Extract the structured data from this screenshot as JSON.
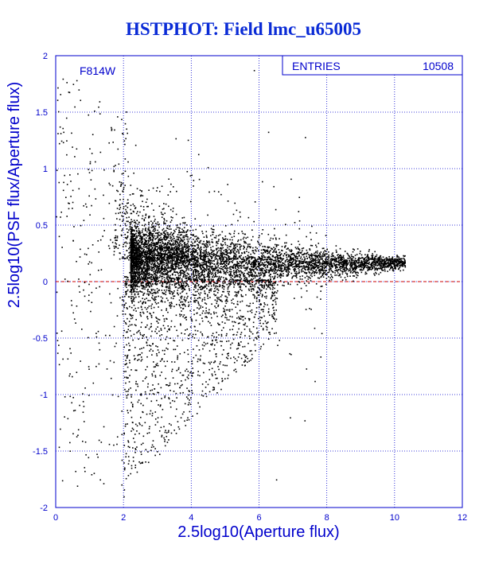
{
  "chart_data": {
    "type": "scatter",
    "title": "HSTPHOT: Field lmc_u65005",
    "xlabel": "2.5log10(Aperture flux)",
    "ylabel": "2.5log10(PSF flux/Aperture flux)",
    "xlim": [
      0,
      12
    ],
    "ylim": [
      -2,
      2
    ],
    "x_ticks": [
      "0",
      "2",
      "4",
      "6",
      "8",
      "10",
      "12"
    ],
    "y_ticks": [
      "-2",
      "-1.5",
      "-1",
      "-0.5",
      "0",
      "0.5",
      "1",
      "1.5",
      "2"
    ],
    "grid": true,
    "reference_line": {
      "y": 0,
      "color": "#cc0000",
      "style": "dashed"
    },
    "filter_label": "F814W",
    "stats_box": {
      "label": "ENTRIES",
      "value": "10508"
    },
    "entries": 10508,
    "series": [
      {
        "marker_color": "#000000",
        "points_sample": [
          [
            0.05,
            1.72
          ],
          [
            0.45,
            1.32
          ],
          [
            0.6,
            1.18
          ],
          [
            0.95,
            1.48
          ],
          [
            1.25,
            1.55
          ],
          [
            1.0,
            1.05
          ],
          [
            1.7,
            0.98
          ],
          [
            1.9,
            0.85
          ],
          [
            0.4,
            0.95
          ],
          [
            0.15,
            0.62
          ],
          [
            2.2,
            0.68
          ],
          [
            2.6,
            0.5
          ],
          [
            3.0,
            0.3
          ],
          [
            3.5,
            0.22
          ],
          [
            4.0,
            0.2
          ],
          [
            5.0,
            0.18
          ],
          [
            6.0,
            0.17
          ],
          [
            7.0,
            0.16
          ],
          [
            8.0,
            0.17
          ],
          [
            9.0,
            0.18
          ],
          [
            9.8,
            0.2
          ],
          [
            10.2,
            0.17
          ],
          [
            2.5,
            -0.3
          ],
          [
            3.0,
            -0.6
          ],
          [
            3.5,
            -0.9
          ],
          [
            3.0,
            -1.2
          ],
          [
            2.0,
            -1.6
          ],
          [
            1.3,
            -1.75
          ],
          [
            6.5,
            -1.75
          ],
          [
            0.4,
            -1.42
          ],
          [
            2.0,
            -1.9
          ],
          [
            3.9,
            -0.5
          ],
          [
            5.0,
            0.5
          ],
          [
            7.8,
            -0.15
          ]
        ],
        "distribution": {
          "core_x_range": [
            2.2,
            10.3
          ],
          "core_y_trend": [
            [
              2.5,
              0.2
            ],
            [
              4.0,
              0.18
            ],
            [
              6.0,
              0.17
            ],
            [
              8.0,
              0.16
            ],
            [
              10.0,
              0.17
            ]
          ],
          "core_spread_at_x2_5": 0.15,
          "core_spread_at_x10": 0.03,
          "lower_wing_min_y": -1.9
        }
      }
    ]
  }
}
